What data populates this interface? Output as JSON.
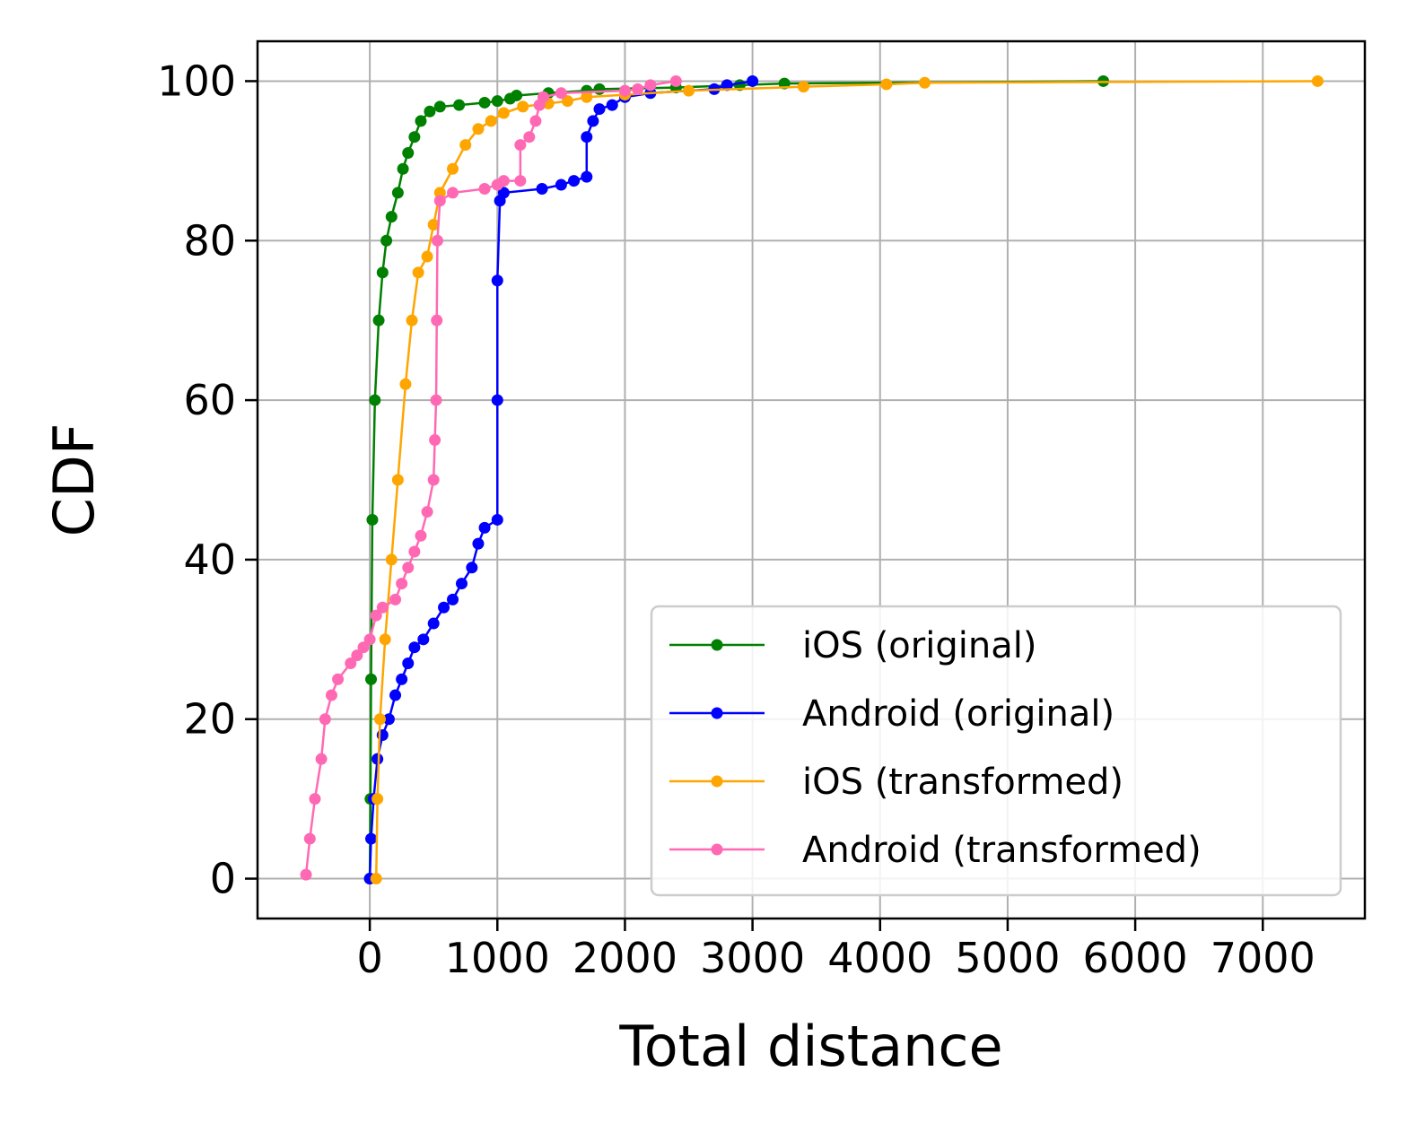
{
  "chart_data": {
    "type": "line",
    "xlabel": "Total distance",
    "ylabel": "CDF",
    "xlim": [
      -880,
      7800
    ],
    "ylim": [
      -5,
      105
    ],
    "xticks": [
      0,
      1000,
      2000,
      3000,
      4000,
      5000,
      6000,
      7000
    ],
    "yticks": [
      0,
      20,
      40,
      60,
      80,
      100
    ],
    "xtick_labels": [
      "0",
      "1000",
      "2000",
      "3000",
      "4000",
      "5000",
      "6000",
      "7000"
    ],
    "ytick_labels": [
      "0",
      "20",
      "40",
      "60",
      "80",
      "100"
    ],
    "grid": true,
    "legend_position": "lower-right",
    "series": [
      {
        "name": "iOS (original)",
        "color": "#008000",
        "points": [
          [
            0,
            0
          ],
          [
            5,
            10
          ],
          [
            10,
            25
          ],
          [
            20,
            45
          ],
          [
            40,
            60
          ],
          [
            70,
            70
          ],
          [
            100,
            76
          ],
          [
            130,
            80
          ],
          [
            170,
            83
          ],
          [
            220,
            86
          ],
          [
            260,
            89
          ],
          [
            300,
            91
          ],
          [
            350,
            93
          ],
          [
            400,
            95
          ],
          [
            470,
            96.2
          ],
          [
            550,
            96.8
          ],
          [
            700,
            97
          ],
          [
            900,
            97.3
          ],
          [
            1000,
            97.5
          ],
          [
            1100,
            97.8
          ],
          [
            1150,
            98.2
          ],
          [
            1400,
            98.5
          ],
          [
            1700,
            98.8
          ],
          [
            1800,
            99
          ],
          [
            2400,
            99.2
          ],
          [
            2900,
            99.5
          ],
          [
            3250,
            99.7
          ],
          [
            5750,
            100
          ]
        ]
      },
      {
        "name": "Android (original)",
        "color": "#0000ff",
        "points": [
          [
            0,
            0
          ],
          [
            10,
            5
          ],
          [
            30,
            10
          ],
          [
            60,
            15
          ],
          [
            100,
            18
          ],
          [
            150,
            20
          ],
          [
            200,
            23
          ],
          [
            250,
            25
          ],
          [
            300,
            27
          ],
          [
            350,
            29
          ],
          [
            420,
            30
          ],
          [
            500,
            32
          ],
          [
            580,
            34
          ],
          [
            650,
            35
          ],
          [
            720,
            37
          ],
          [
            800,
            39
          ],
          [
            850,
            42
          ],
          [
            900,
            44
          ],
          [
            1000,
            45
          ],
          [
            1000,
            60
          ],
          [
            1000,
            75
          ],
          [
            1020,
            85
          ],
          [
            1050,
            86
          ],
          [
            1350,
            86.5
          ],
          [
            1500,
            87
          ],
          [
            1600,
            87.5
          ],
          [
            1700,
            88
          ],
          [
            1700,
            93
          ],
          [
            1750,
            95
          ],
          [
            1800,
            96.5
          ],
          [
            1900,
            97
          ],
          [
            2000,
            98
          ],
          [
            2200,
            98.5
          ],
          [
            2700,
            99
          ],
          [
            2800,
            99.5
          ],
          [
            3000,
            100
          ]
        ]
      },
      {
        "name": "iOS (transformed)",
        "color": "#ffa500",
        "points": [
          [
            50,
            0
          ],
          [
            60,
            10
          ],
          [
            80,
            20
          ],
          [
            120,
            30
          ],
          [
            170,
            40
          ],
          [
            220,
            50
          ],
          [
            280,
            62
          ],
          [
            330,
            70
          ],
          [
            380,
            76
          ],
          [
            450,
            78
          ],
          [
            500,
            82
          ],
          [
            550,
            86
          ],
          [
            650,
            89
          ],
          [
            750,
            92
          ],
          [
            850,
            94
          ],
          [
            950,
            95
          ],
          [
            1050,
            96
          ],
          [
            1200,
            96.8
          ],
          [
            1400,
            97.2
          ],
          [
            1550,
            97.5
          ],
          [
            1700,
            98
          ],
          [
            2000,
            98.3
          ],
          [
            2500,
            98.8
          ],
          [
            3400,
            99.3
          ],
          [
            4050,
            99.6
          ],
          [
            4350,
            99.8
          ],
          [
            7430,
            100
          ]
        ]
      },
      {
        "name": "Android (transformed)",
        "color": "#ff69b4",
        "points": [
          [
            -500,
            0.5
          ],
          [
            -470,
            5
          ],
          [
            -430,
            10
          ],
          [
            -380,
            15
          ],
          [
            -350,
            20
          ],
          [
            -300,
            23
          ],
          [
            -250,
            25
          ],
          [
            -150,
            27
          ],
          [
            -100,
            28
          ],
          [
            -50,
            29
          ],
          [
            0,
            30
          ],
          [
            50,
            33
          ],
          [
            100,
            34
          ],
          [
            200,
            35
          ],
          [
            250,
            37
          ],
          [
            300,
            39
          ],
          [
            350,
            41
          ],
          [
            400,
            43
          ],
          [
            450,
            46
          ],
          [
            500,
            50
          ],
          [
            510,
            55
          ],
          [
            520,
            60
          ],
          [
            525,
            70
          ],
          [
            530,
            80
          ],
          [
            550,
            85
          ],
          [
            650,
            86
          ],
          [
            900,
            86.5
          ],
          [
            1000,
            87
          ],
          [
            1050,
            87.5
          ],
          [
            1180,
            87.5
          ],
          [
            1180,
            92
          ],
          [
            1250,
            93
          ],
          [
            1300,
            95
          ],
          [
            1330,
            97
          ],
          [
            1360,
            98
          ],
          [
            1500,
            98.5
          ],
          [
            2000,
            98.8
          ],
          [
            2100,
            99
          ],
          [
            2200,
            99.5
          ],
          [
            2400,
            100
          ]
        ]
      }
    ]
  }
}
